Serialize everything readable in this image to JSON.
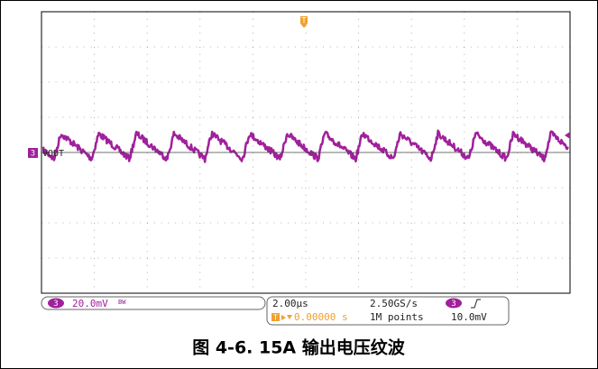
{
  "trace": {
    "trigger_marker": "T",
    "channel": "3",
    "label": "VOUT"
  },
  "readout": {
    "channel": "3",
    "scale": "20.0mV",
    "bandwidth": "BW",
    "timebase": "2.00µs",
    "sample_rate": "2.50GS/s",
    "trigger_channel": "3",
    "trigger_marker": "T",
    "trigger_position": "0.00000 s",
    "record_length": "1M points",
    "trigger_level": "10.0mV"
  },
  "caption": "图 4-6. 15A 输出电压纹波"
}
